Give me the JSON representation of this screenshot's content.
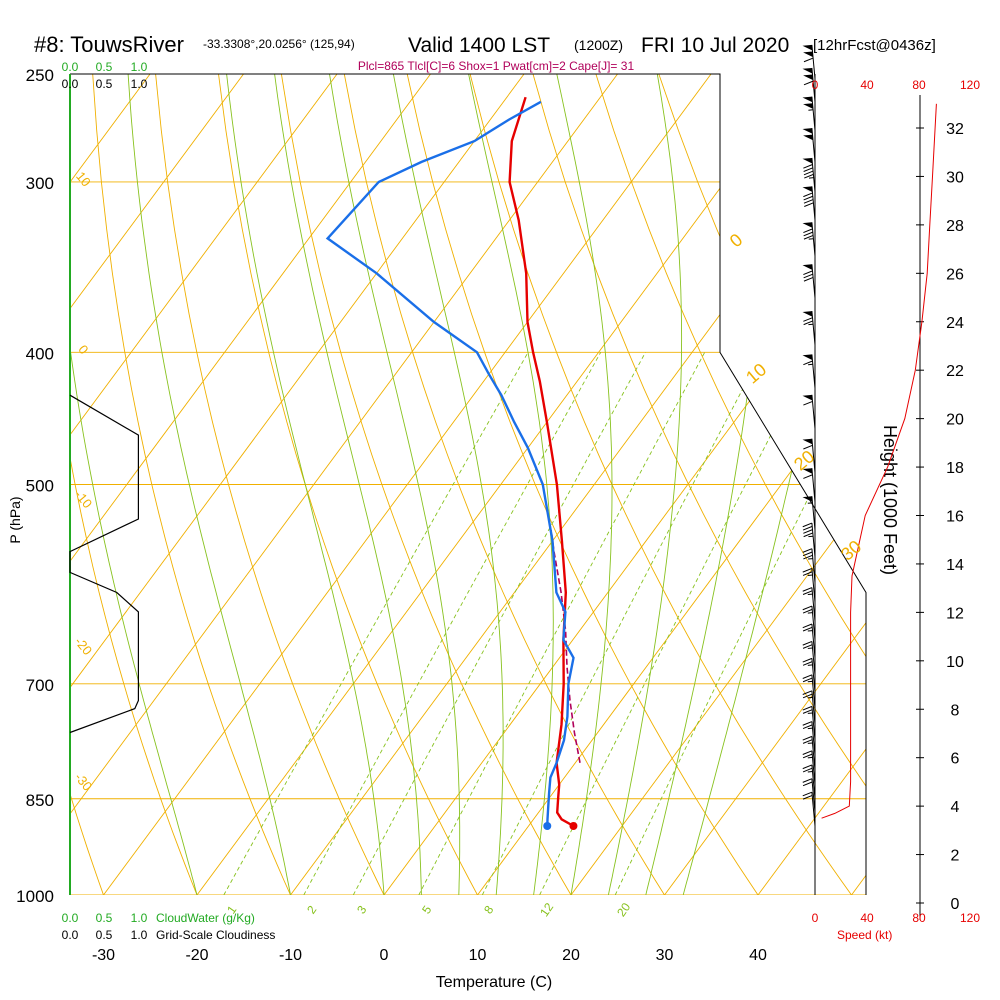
{
  "chart_data": {
    "type": "skew-t",
    "title": {
      "station": "#8: TouwsRiver",
      "coords": "-33.3308°,20.0256° (125,94)",
      "valid": "Valid 1400 LST",
      "zulu": "(1200Z)",
      "date": "FRI 10 Jul 2020",
      "forecast": "[12hrFcst@0436z]"
    },
    "subtitle": "Plcl=865 Tlcl[C]=6 Shox=1 Pwat[cm]=2 Cape[J]= 31",
    "xlabel": "Temperature (C)",
    "ylabel": "P (hPa)",
    "y2label": "Height (1000 Feet)",
    "xticks": [
      "-30",
      "-20",
      "-10",
      "0",
      "10",
      "20",
      "30",
      "40"
    ],
    "pressure_ticks": [
      "250",
      "300",
      "400",
      "500",
      "700",
      "850",
      "1000"
    ],
    "height_ticks": [
      "0",
      "2",
      "4",
      "6",
      "8",
      "10",
      "12",
      "14",
      "16",
      "18",
      "20",
      "22",
      "24",
      "26",
      "28",
      "30",
      "32"
    ],
    "cloud_water_scale": [
      "0.0",
      "0.5",
      "1.0"
    ],
    "cloudiness_scale": [
      "0.0",
      "0.5",
      "1.0"
    ],
    "cloud_water_label": "CloudWater (g/Kg)",
    "cloudiness_label": "Grid-Scale Cloudiness",
    "speed_ticks": [
      "0",
      "40",
      "80",
      "120"
    ],
    "speed_label": "Speed (kt)",
    "isotherm_labels": [
      "10",
      "0",
      "-10",
      "-20",
      "-30"
    ],
    "theta_labels": [
      "0",
      "10",
      "20",
      "30"
    ],
    "mixing_ratio_labels": [
      "1",
      "2",
      "3",
      "5",
      "8",
      "12",
      "20"
    ],
    "xlim": [
      -34,
      46
    ],
    "plim": [
      1000,
      250
    ],
    "temperature": {
      "name": "Temperature",
      "p": [
        890,
        880,
        870,
        850,
        830,
        800,
        750,
        700,
        650,
        600,
        550,
        500,
        450,
        420,
        400,
        380,
        350,
        320,
        300,
        280,
        260
      ],
      "t": [
        14.8,
        13.0,
        12.0,
        11.0,
        10.0,
        8.0,
        5.5,
        2.5,
        -1.0,
        -4.5,
        -9.0,
        -14.0,
        -20.0,
        -24.0,
        -27.0,
        -30.0,
        -34.0,
        -39.0,
        -43.0,
        -46.0,
        -48.0
      ]
    },
    "dewpoint": {
      "name": "Dewpoint",
      "p": [
        890,
        880,
        860,
        840,
        820,
        800,
        770,
        740,
        700,
        670,
        650,
        620,
        600,
        550,
        500,
        470,
        450,
        430,
        415,
        400,
        380,
        350,
        330,
        300,
        290,
        280,
        270,
        262
      ],
      "td": [
        12.0,
        11.5,
        10.5,
        9.5,
        8.5,
        8.0,
        7.0,
        5.5,
        3.0,
        1.5,
        -1.0,
        -3.0,
        -5.5,
        -10.0,
        -15.5,
        -20.0,
        -23.5,
        -27.0,
        -30.0,
        -33.0,
        -40.0,
        -50.0,
        -58.0,
        -57.0,
        -54.0,
        -50.0,
        -48.0,
        -46.0
      ]
    },
    "parcel": {
      "name": "Parcel",
      "p": [
        800,
        760,
        720,
        680,
        640,
        600,
        560,
        540
      ],
      "t": [
        10.5,
        7.5,
        4.5,
        1.5,
        -1.5,
        -5.0,
        -9.0,
        -11.0
      ]
    },
    "cloudiness_profile": {
      "p": [
        430,
        460,
        530,
        560,
        575,
        580,
        600,
        620,
        720,
        730,
        760
      ],
      "value": [
        0.0,
        0.95,
        0.95,
        0.0,
        0.0,
        0.0,
        0.65,
        0.95,
        0.95,
        0.9,
        0.0
      ]
    },
    "wind_speed_profile": {
      "height_kft": [
        3.5,
        3.7,
        4.0,
        5.0,
        7.0,
        10.0,
        12.0,
        13.5,
        16.0,
        18.0,
        20.0,
        22.0,
        24.0,
        26.0,
        28.0,
        30.0,
        32.0,
        33.0
      ],
      "speed_kt": [
        5,
        15,
        26,
        27,
        27,
        27,
        27,
        28,
        38,
        55,
        68,
        76,
        81,
        85,
        87,
        89,
        91,
        92
      ]
    },
    "wind_barbs": [
      {
        "p": 890,
        "kt": 20
      },
      {
        "p": 870,
        "kt": 22
      },
      {
        "p": 850,
        "kt": 25
      },
      {
        "p": 830,
        "kt": 25
      },
      {
        "p": 810,
        "kt": 25
      },
      {
        "p": 790,
        "kt": 25
      },
      {
        "p": 770,
        "kt": 25
      },
      {
        "p": 750,
        "kt": 25
      },
      {
        "p": 730,
        "kt": 25
      },
      {
        "p": 710,
        "kt": 25
      },
      {
        "p": 690,
        "kt": 25
      },
      {
        "p": 670,
        "kt": 25
      },
      {
        "p": 650,
        "kt": 25
      },
      {
        "p": 630,
        "kt": 25
      },
      {
        "p": 610,
        "kt": 25
      },
      {
        "p": 590,
        "kt": 35
      },
      {
        "p": 565,
        "kt": 45
      },
      {
        "p": 540,
        "kt": 55
      },
      {
        "p": 515,
        "kt": 60
      },
      {
        "p": 490,
        "kt": 60
      },
      {
        "p": 455,
        "kt": 60
      },
      {
        "p": 425,
        "kt": 65
      },
      {
        "p": 395,
        "kt": 75
      },
      {
        "p": 365,
        "kt": 80
      },
      {
        "p": 340,
        "kt": 85
      },
      {
        "p": 320,
        "kt": 90
      },
      {
        "p": 305,
        "kt": 95
      },
      {
        "p": 290,
        "kt": 100
      },
      {
        "p": 275,
        "kt": 105
      },
      {
        "p": 262,
        "kt": 110
      },
      {
        "p": 252,
        "kt": 110
      }
    ],
    "colors": {
      "temperature": "#e60000",
      "dewpoint": "#1a6fe8",
      "parcel": "#b0005a",
      "isotherm": "#f0b000",
      "isobar": "#f0b000",
      "dry_adiabat": "#f0b000",
      "moist_adiabat": "#88c21f",
      "mixing_ratio": "#88c21f",
      "cloud_water": "#22aa22",
      "subtitle": "#b0005a",
      "speed": "#e60000",
      "axis": "#000000"
    }
  }
}
